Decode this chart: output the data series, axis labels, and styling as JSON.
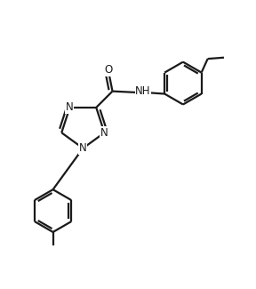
{
  "background_color": "#ffffff",
  "line_color": "#1a1a1a",
  "line_width": 1.6,
  "font_size": 8.5,
  "figsize": [
    2.88,
    3.25
  ],
  "dpi": 100,
  "xlim": [
    0.0,
    10.0
  ],
  "ylim": [
    0.0,
    11.5
  ]
}
